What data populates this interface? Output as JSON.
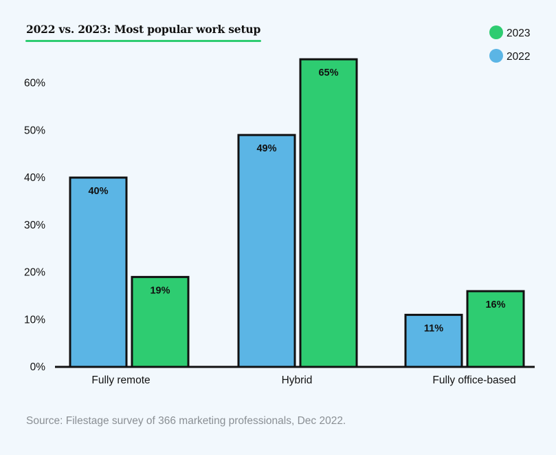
{
  "chart_data": {
    "type": "bar",
    "title": "2022 vs. 2023: Most popular work setup",
    "categories": [
      "Fully remote",
      "Hybrid",
      "Fully office-based"
    ],
    "series": [
      {
        "name": "2022",
        "values": [
          40,
          49,
          11
        ],
        "labels": [
          "40%",
          "49%",
          "11%"
        ],
        "color": "#5bb5e5"
      },
      {
        "name": "2023",
        "values": [
          19,
          65,
          16
        ],
        "labels": [
          "19%",
          "65%",
          "16%"
        ],
        "color": "#2ecc71"
      }
    ],
    "ylim": [
      0,
      65
    ],
    "yticks": [
      0,
      10,
      20,
      30,
      40,
      50,
      60
    ],
    "ytick_labels": [
      "0%",
      "10%",
      "20%",
      "30%",
      "40%",
      "50%",
      "60%"
    ],
    "xlabel": "",
    "ylabel": "",
    "legend_position": "top-right",
    "grid": false,
    "source": "Source: Filestage survey of 366 marketing professionals, Dec 2022."
  }
}
